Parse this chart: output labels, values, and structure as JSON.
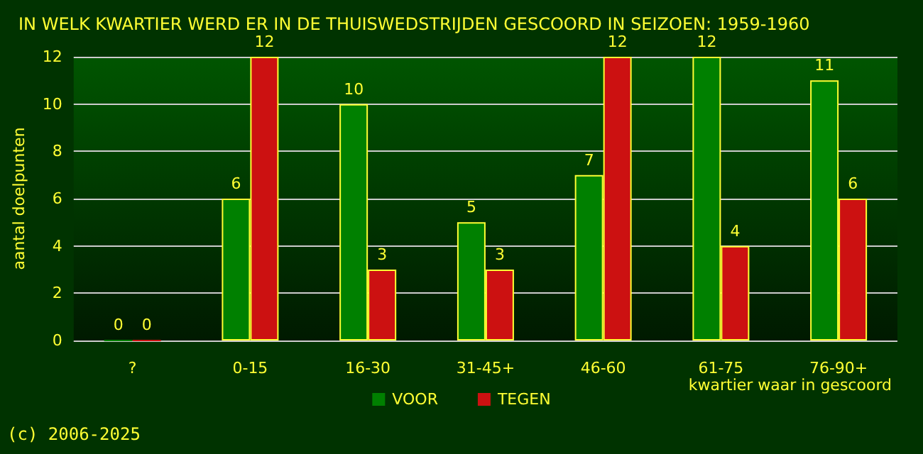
{
  "chart_data": {
    "type": "bar",
    "title": "IN WELK KWARTIER WERD ER IN DE THUISWEDSTRIJDEN GESCOORD IN SEIZOEN: 1959-1960",
    "xlabel": "kwartier waar in gescoord",
    "ylabel": "aantal doelpunten",
    "categories": [
      "?",
      "0-15",
      "16-30",
      "31-45+",
      "46-60",
      "61-75",
      "76-90+"
    ],
    "series": [
      {
        "name": "VOOR",
        "color": "#008000",
        "values": [
          0,
          6,
          10,
          5,
          7,
          12,
          11
        ]
      },
      {
        "name": "TEGEN",
        "color": "#cc1111",
        "values": [
          0,
          12,
          3,
          3,
          12,
          4,
          6
        ]
      }
    ],
    "ylim": [
      0,
      12
    ],
    "yticks": [
      0,
      2,
      4,
      6,
      8,
      10,
      12
    ],
    "grid": "y",
    "legend": "bottom",
    "data_labels": true,
    "annotations": [
      "(c) 2006-2025"
    ]
  }
}
